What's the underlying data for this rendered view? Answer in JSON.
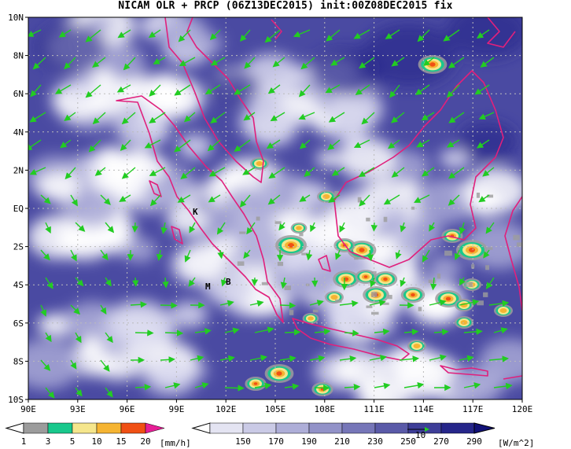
{
  "title": "NICAM OLR + PRCP (06Z13DEC2015) init:00Z08DEC2015 fix",
  "lat_labels": [
    "10N",
    "8N",
    "6N",
    "4N",
    "2N",
    "EQ",
    "2S",
    "4S",
    "6S",
    "8S",
    "10S"
  ],
  "lon_labels": [
    "90E",
    "93E",
    "96E",
    "99E",
    "102E",
    "105E",
    "108E",
    "111E",
    "114E",
    "117E",
    "120E"
  ],
  "map_labels": {
    "k": "K",
    "m": "M",
    "b": "B"
  },
  "precip_colorbar": {
    "values": [
      "1",
      "3",
      "5",
      "10",
      "15",
      "20"
    ],
    "unit": "[mm/h]",
    "colors": [
      "#9c9c9c",
      "#19c88c",
      "#f5e68c",
      "#f5b432",
      "#f05014",
      "#e61e96"
    ]
  },
  "olr_colorbar": {
    "values": [
      "150",
      "170",
      "190",
      "210",
      "230",
      "250",
      "270",
      "290"
    ],
    "unit": "[W/m^2]",
    "colors": [
      "#ffffff",
      "#e4e4f2",
      "#cacae6",
      "#aeaed8",
      "#9292c8",
      "#7676b8",
      "#5a5aa8",
      "#3e3e98",
      "#26268a",
      "#121278"
    ]
  },
  "vector_label": "10"
}
